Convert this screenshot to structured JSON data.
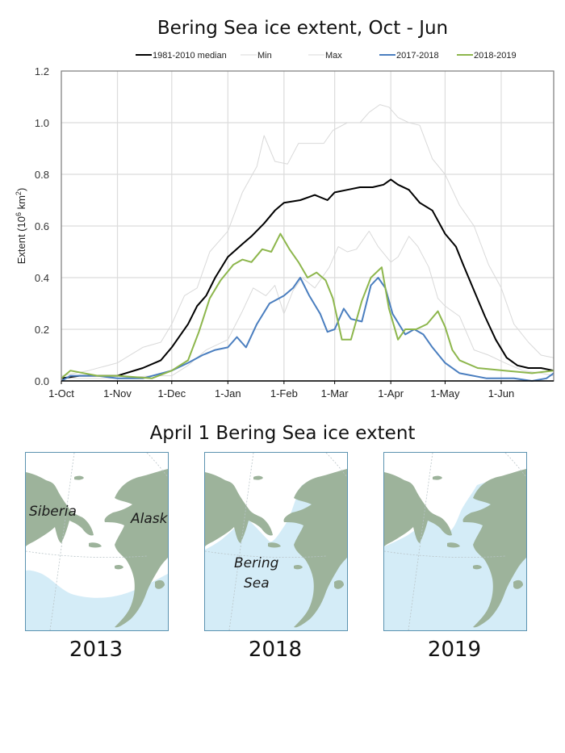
{
  "chart_title": "Bering Sea ice extent, Oct - Jun",
  "maps_title": "April 1 Bering Sea ice extent",
  "colors": {
    "median": "#000000",
    "min": "#d9d9d9",
    "max": "#d9d9d9",
    "y2017_2018": "#4a7ebf",
    "y2018_2019": "#8db64c",
    "land": "#9db39b",
    "ice": "#ffffff",
    "ocean": "#d4ecf7",
    "map_border": "#5b92b0"
  },
  "chart_data": {
    "type": "line",
    "title": "Bering Sea ice extent, Oct - Jun",
    "xlabel": "",
    "ylabel": "Extent (10⁶ km²)",
    "ylabel_parts": {
      "prefix": "Extent (10",
      "sup1": "6",
      "mid": " km",
      "sup2": "2",
      "suffix": ")"
    },
    "x_unit": "days since 1-Oct",
    "xlim": [
      0,
      272
    ],
    "ylim": [
      0,
      1.2
    ],
    "grid": true,
    "legend_position": "top",
    "x_ticks": [
      {
        "label": "1-Oct",
        "day": 0
      },
      {
        "label": "1-Nov",
        "day": 31
      },
      {
        "label": "1-Dec",
        "day": 61
      },
      {
        "label": "1-Jan",
        "day": 92
      },
      {
        "label": "1-Feb",
        "day": 123
      },
      {
        "label": "1-Mar",
        "day": 151
      },
      {
        "label": "1-Apr",
        "day": 182
      },
      {
        "label": "1-May",
        "day": 212
      },
      {
        "label": "1-Jun",
        "day": 243
      }
    ],
    "y_ticks": [
      "0.0",
      "0.2",
      "0.4",
      "0.6",
      "0.8",
      "1.0",
      "1.2"
    ],
    "series": [
      {
        "name": "1981-2010 median",
        "key": "median",
        "x": [
          0,
          10,
          20,
          31,
          45,
          55,
          61,
          70,
          75,
          80,
          85,
          92,
          100,
          105,
          112,
          118,
          123,
          132,
          140,
          147,
          151,
          158,
          165,
          172,
          178,
          182,
          186,
          192,
          198,
          205,
          212,
          218,
          222,
          228,
          234,
          240,
          246,
          252,
          258,
          265,
          272
        ],
        "y": [
          0.01,
          0.02,
          0.02,
          0.02,
          0.05,
          0.08,
          0.13,
          0.22,
          0.29,
          0.33,
          0.4,
          0.48,
          0.53,
          0.56,
          0.61,
          0.66,
          0.69,
          0.7,
          0.72,
          0.7,
          0.73,
          0.74,
          0.75,
          0.75,
          0.76,
          0.78,
          0.76,
          0.74,
          0.69,
          0.66,
          0.57,
          0.52,
          0.45,
          0.35,
          0.25,
          0.16,
          0.09,
          0.06,
          0.05,
          0.05,
          0.04
        ]
      },
      {
        "name": "Min",
        "key": "min",
        "x": [
          0,
          20,
          31,
          50,
          61,
          70,
          80,
          92,
          100,
          106,
          113,
          118,
          123,
          128,
          133,
          140,
          148,
          153,
          158,
          163,
          170,
          175,
          182,
          186,
          192,
          197,
          203,
          208,
          212,
          220,
          228,
          236,
          245,
          255,
          265,
          272
        ],
        "y": [
          0.01,
          0.01,
          0.01,
          0.02,
          0.02,
          0.06,
          0.12,
          0.16,
          0.27,
          0.36,
          0.33,
          0.37,
          0.26,
          0.35,
          0.4,
          0.36,
          0.44,
          0.52,
          0.5,
          0.51,
          0.58,
          0.52,
          0.46,
          0.48,
          0.56,
          0.52,
          0.44,
          0.32,
          0.29,
          0.25,
          0.12,
          0.1,
          0.07,
          0.04,
          0.03,
          0.02
        ]
      },
      {
        "name": "Max",
        "key": "max",
        "x": [
          0,
          15,
          31,
          45,
          55,
          61,
          68,
          75,
          82,
          92,
          100,
          108,
          112,
          118,
          125,
          131,
          137,
          145,
          150,
          158,
          165,
          170,
          176,
          181,
          186,
          192,
          198,
          205,
          212,
          220,
          228,
          236,
          243,
          250,
          258,
          265,
          272
        ],
        "y": [
          0.02,
          0.04,
          0.07,
          0.13,
          0.15,
          0.22,
          0.33,
          0.36,
          0.5,
          0.58,
          0.73,
          0.83,
          0.95,
          0.85,
          0.84,
          0.92,
          0.92,
          0.92,
          0.97,
          1.0,
          1.0,
          1.04,
          1.07,
          1.06,
          1.02,
          1.0,
          0.99,
          0.86,
          0.8,
          0.68,
          0.6,
          0.45,
          0.36,
          0.22,
          0.15,
          0.1,
          0.09
        ]
      },
      {
        "name": "2017-2018",
        "key": "y2017_2018",
        "x": [
          0,
          5,
          20,
          31,
          45,
          61,
          70,
          78,
          85,
          92,
          97,
          102,
          108,
          115,
          123,
          128,
          132,
          137,
          143,
          147,
          151,
          156,
          160,
          166,
          171,
          175,
          179,
          183,
          190,
          195,
          200,
          205,
          212,
          220,
          235,
          250,
          260,
          268,
          272
        ],
        "y": [
          0.0,
          0.02,
          0.02,
          0.01,
          0.01,
          0.04,
          0.07,
          0.1,
          0.12,
          0.13,
          0.17,
          0.13,
          0.22,
          0.3,
          0.33,
          0.36,
          0.4,
          0.33,
          0.26,
          0.19,
          0.2,
          0.28,
          0.24,
          0.23,
          0.37,
          0.4,
          0.36,
          0.26,
          0.18,
          0.2,
          0.18,
          0.13,
          0.07,
          0.03,
          0.01,
          0.01,
          0.0,
          0.01,
          0.03
        ]
      },
      {
        "name": "2018-2019",
        "key": "y2018_2019",
        "x": [
          0,
          5,
          20,
          31,
          50,
          61,
          70,
          76,
          82,
          88,
          95,
          100,
          105,
          111,
          116,
          121,
          126,
          131,
          136,
          141,
          146,
          150,
          155,
          160,
          166,
          171,
          177,
          181,
          186,
          190,
          196,
          202,
          208,
          212,
          216,
          220,
          230,
          245,
          260,
          272
        ],
        "y": [
          0.01,
          0.04,
          0.02,
          0.02,
          0.01,
          0.04,
          0.08,
          0.19,
          0.32,
          0.39,
          0.45,
          0.47,
          0.46,
          0.51,
          0.5,
          0.57,
          0.51,
          0.46,
          0.4,
          0.42,
          0.39,
          0.32,
          0.16,
          0.16,
          0.31,
          0.4,
          0.44,
          0.28,
          0.16,
          0.2,
          0.2,
          0.22,
          0.27,
          0.21,
          0.12,
          0.08,
          0.05,
          0.04,
          0.03,
          0.04
        ]
      }
    ]
  },
  "maps": [
    {
      "year": "2013",
      "labels": [
        "Siberia",
        "Alaska"
      ]
    },
    {
      "year": "2018",
      "labels": [
        "Bering",
        "Sea"
      ]
    },
    {
      "year": "2019",
      "labels": []
    }
  ]
}
